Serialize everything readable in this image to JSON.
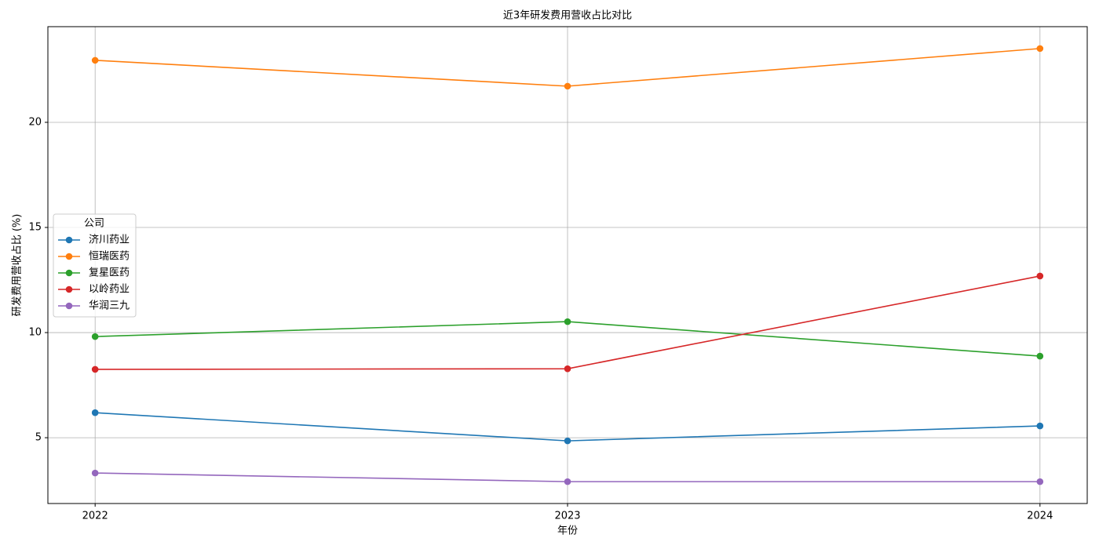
{
  "chart_data": {
    "type": "line",
    "title": "近3年研发费用营收占比对比",
    "x_label": "年份",
    "y_label": "研发费用营收占比 (%)",
    "categories": [
      "2022",
      "2023",
      "2024"
    ],
    "series": [
      {
        "name": "济川药业",
        "color": "#1f77b4",
        "values": [
          6.19,
          4.85,
          5.56
        ]
      },
      {
        "name": "恒瑞医药",
        "color": "#ff7f0e",
        "values": [
          22.95,
          21.72,
          23.51
        ]
      },
      {
        "name": "复星医药",
        "color": "#2ca02c",
        "values": [
          9.81,
          10.52,
          8.88
        ]
      },
      {
        "name": "以岭药业",
        "color": "#d62728",
        "values": [
          8.25,
          8.28,
          12.69
        ]
      },
      {
        "name": "华润三九",
        "color": "#9467bd",
        "values": [
          3.32,
          2.91,
          2.91
        ]
      }
    ],
    "ylim": [
      1.87,
      24.55
    ],
    "yticks": [
      5,
      10,
      15,
      20
    ],
    "grid": true,
    "legend_title": "公司",
    "legend_position": "center-left"
  }
}
